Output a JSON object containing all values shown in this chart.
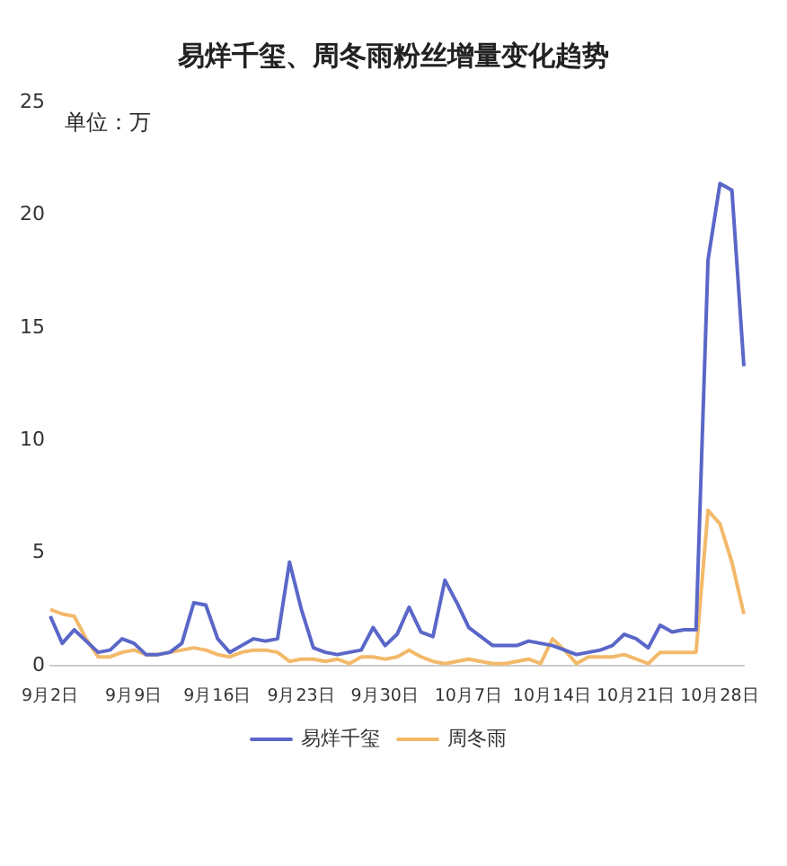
{
  "chart_data": {
    "type": "line",
    "title": "易烊千玺、周冬雨粉丝增量变化趋势",
    "annotations": [
      "单位：万"
    ],
    "categories": [
      "9月2日",
      null,
      null,
      null,
      null,
      null,
      null,
      "9月9日",
      null,
      null,
      null,
      null,
      null,
      null,
      "9月16日",
      null,
      null,
      null,
      null,
      null,
      null,
      "9月23日",
      null,
      null,
      null,
      null,
      null,
      null,
      "9月30日",
      null,
      null,
      null,
      null,
      null,
      null,
      "10月7日",
      null,
      null,
      null,
      null,
      null,
      null,
      "10月14日",
      null,
      null,
      null,
      null,
      null,
      null,
      "10月21日",
      null,
      null,
      null,
      null,
      null,
      null,
      "10月28日",
      null,
      null
    ],
    "series": [
      {
        "name": "易烊千玺",
        "color": "#5a67c8",
        "values": [
          2.2,
          1.0,
          1.6,
          1.1,
          0.6,
          0.7,
          1.2,
          1.0,
          0.5,
          0.5,
          0.6,
          1.0,
          2.8,
          2.7,
          1.2,
          0.6,
          0.9,
          1.2,
          1.1,
          1.2,
          4.6,
          2.5,
          0.8,
          0.6,
          0.5,
          0.6,
          0.7,
          1.7,
          0.9,
          1.4,
          2.6,
          1.5,
          1.3,
          3.8,
          2.8,
          1.7,
          1.3,
          0.9,
          0.9,
          0.9,
          1.1,
          1.0,
          0.9,
          0.7,
          0.5,
          0.6,
          0.7,
          0.9,
          1.4,
          1.2,
          0.8,
          1.8,
          1.5,
          1.6,
          1.6,
          18.0,
          21.4,
          21.1,
          13.3
        ]
      },
      {
        "name": "周冬雨",
        "color": "#f3b96a",
        "values": [
          2.5,
          2.3,
          2.2,
          1.2,
          0.4,
          0.4,
          0.6,
          0.7,
          0.5,
          0.5,
          0.6,
          0.7,
          0.8,
          0.7,
          0.5,
          0.4,
          0.6,
          0.7,
          0.7,
          0.6,
          0.2,
          0.3,
          0.3,
          0.2,
          0.3,
          0.1,
          0.4,
          0.4,
          0.3,
          0.4,
          0.7,
          0.4,
          0.2,
          0.1,
          0.2,
          0.3,
          0.2,
          0.1,
          0.1,
          0.2,
          0.3,
          0.1,
          1.2,
          0.7,
          0.1,
          0.4,
          0.4,
          0.4,
          0.5,
          0.3,
          0.1,
          0.6,
          0.6,
          0.6,
          0.6,
          6.9,
          6.3,
          4.6,
          2.3
        ]
      }
    ],
    "ylim": [
      0,
      25
    ],
    "yticks": [
      0,
      5,
      10,
      15,
      20,
      25
    ],
    "grid": false,
    "legend": "bottom",
    "marker": "none",
    "line_style": "solid"
  }
}
